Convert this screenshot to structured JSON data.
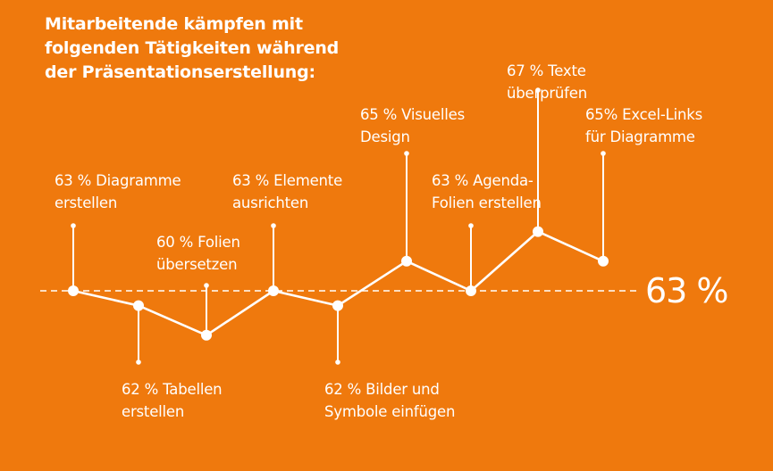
{
  "chart_data": {
    "type": "line",
    "title": [
      "Mitarbeitende kämpfen mit",
      "folgenden Tätigkeiten während",
      "der Präsentationserstellung:"
    ],
    "xlabel": "",
    "ylabel": "",
    "unit": "%",
    "grid": false,
    "reference_line": {
      "value": 63,
      "label": "63 %"
    },
    "points": [
      {
        "value": 63,
        "label": [
          "63 % Diagramme",
          "erstellen"
        ],
        "side": "above"
      },
      {
        "value": 62,
        "label": [
          "62 % Tabellen",
          "erstellen"
        ],
        "side": "below"
      },
      {
        "value": 60,
        "label": [
          "60 % Folien",
          "übersetzen"
        ],
        "side": "above"
      },
      {
        "value": 63,
        "label": [
          "63 % Elemente",
          "ausrichten"
        ],
        "side": "above"
      },
      {
        "value": 62,
        "label": [
          "62 % Bilder und",
          "Symbole einfügen"
        ],
        "side": "below"
      },
      {
        "value": 65,
        "label": [
          "65 % Visuelles",
          "Design"
        ],
        "side": "above"
      },
      {
        "value": 63,
        "label": [
          "63 % Agenda-",
          "Folien erstellen"
        ],
        "side": "above"
      },
      {
        "value": 67,
        "label": [
          "67 % Texte",
          "überprüfen"
        ],
        "side": "above"
      },
      {
        "value": 65,
        "label": [
          "65% Excel-Links",
          "für Diagramme"
        ],
        "side": "above"
      }
    ]
  },
  "colors": {
    "background": "#EF790D",
    "foreground": "#FFFFFF"
  }
}
